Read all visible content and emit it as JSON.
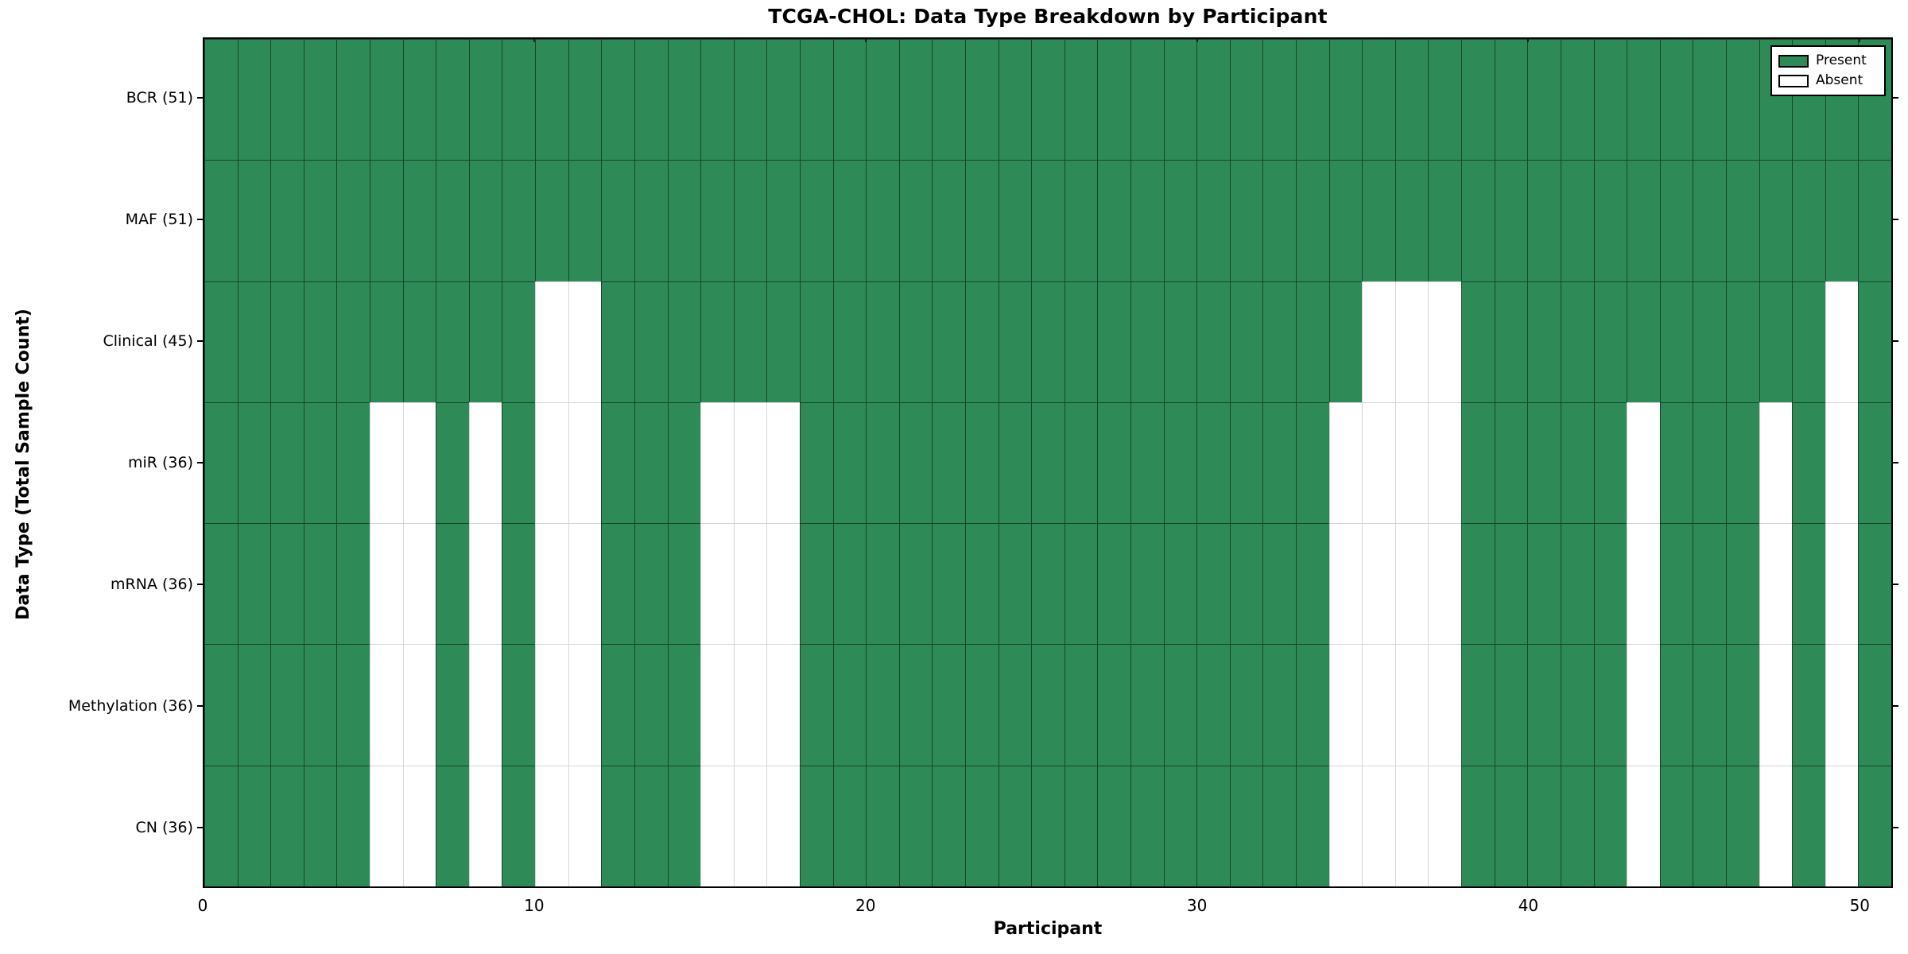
{
  "chart_data": {
    "type": "heatmap",
    "title": "TCGA-CHOL: Data Type Breakdown by Participant",
    "xlabel": "Participant",
    "ylabel": "Data Type (Total Sample Count)",
    "n_participants": 51,
    "x_axis_range": [
      0,
      51
    ],
    "x_ticks": [
      0,
      10,
      20,
      30,
      40,
      50
    ],
    "grid": true,
    "legend_position": "upper right",
    "colors": {
      "present": "#2e8b57",
      "absent": "#ffffff",
      "frame": "#000000"
    },
    "legend": [
      {
        "label": "Present",
        "color": "#2e8b57"
      },
      {
        "label": "Absent",
        "color": "#ffffff"
      }
    ],
    "rows": [
      {
        "label": "BCR (51)",
        "data_type": "BCR",
        "present_count": 51,
        "absent_participants": []
      },
      {
        "label": "MAF (51)",
        "data_type": "MAF",
        "present_count": 51,
        "absent_participants": []
      },
      {
        "label": "Clinical (45)",
        "data_type": "Clinical",
        "present_count": 45,
        "absent_participants": [
          10,
          11,
          35,
          36,
          37,
          49
        ]
      },
      {
        "label": "miR (36)",
        "data_type": "miR",
        "present_count": 36,
        "absent_participants": [
          5,
          6,
          8,
          10,
          11,
          15,
          16,
          17,
          34,
          35,
          36,
          37,
          43,
          47,
          49
        ]
      },
      {
        "label": "mRNA (36)",
        "data_type": "mRNA",
        "present_count": 36,
        "absent_participants": [
          5,
          6,
          8,
          10,
          11,
          15,
          16,
          17,
          34,
          35,
          36,
          37,
          43,
          47,
          49
        ]
      },
      {
        "label": "Methylation (36)",
        "data_type": "Methylation",
        "present_count": 36,
        "absent_participants": [
          5,
          6,
          8,
          10,
          11,
          15,
          16,
          17,
          34,
          35,
          36,
          37,
          43,
          47,
          49
        ]
      },
      {
        "label": "CN (36)",
        "data_type": "CN",
        "present_count": 36,
        "absent_participants": [
          5,
          6,
          8,
          10,
          11,
          15,
          16,
          17,
          34,
          35,
          36,
          37,
          43,
          47,
          49
        ]
      }
    ]
  }
}
